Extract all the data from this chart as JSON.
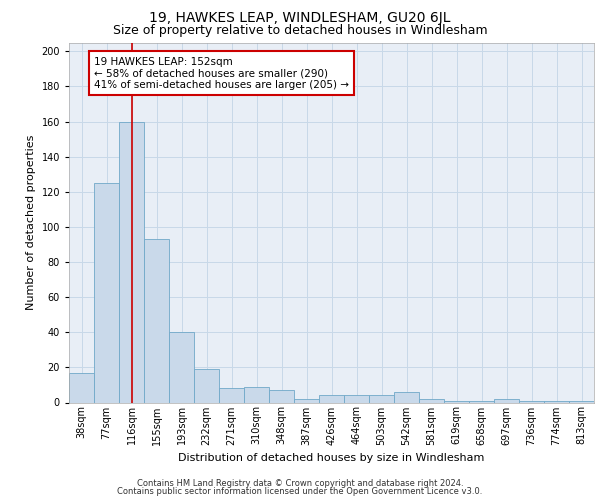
{
  "title1": "19, HAWKES LEAP, WINDLESHAM, GU20 6JL",
  "title2": "Size of property relative to detached houses in Windlesham",
  "xlabel": "Distribution of detached houses by size in Windlesham",
  "ylabel": "Number of detached properties",
  "categories": [
    "38sqm",
    "77sqm",
    "116sqm",
    "155sqm",
    "193sqm",
    "232sqm",
    "271sqm",
    "310sqm",
    "348sqm",
    "387sqm",
    "426sqm",
    "464sqm",
    "503sqm",
    "542sqm",
    "581sqm",
    "619sqm",
    "658sqm",
    "697sqm",
    "736sqm",
    "774sqm",
    "813sqm"
  ],
  "values": [
    17,
    125,
    160,
    93,
    40,
    19,
    8,
    9,
    7,
    2,
    4,
    4,
    4,
    6,
    2,
    1,
    1,
    2,
    1,
    1,
    1
  ],
  "bar_color": "#c9d9ea",
  "bar_edgecolor": "#6fa8c8",
  "vline_x": 2,
  "vline_color": "#cc0000",
  "annotation_line1": "19 HAWKES LEAP: 152sqm",
  "annotation_line2": "← 58% of detached houses are smaller (290)",
  "annotation_line3": "41% of semi-detached houses are larger (205) →",
  "annotation_box_color": "#ffffff",
  "annotation_box_edgecolor": "#cc0000",
  "footer1": "Contains HM Land Registry data © Crown copyright and database right 2024.",
  "footer2": "Contains public sector information licensed under the Open Government Licence v3.0.",
  "ylim": [
    0,
    205
  ],
  "yticks": [
    0,
    20,
    40,
    60,
    80,
    100,
    120,
    140,
    160,
    180,
    200
  ],
  "grid_color": "#c8d8e8",
  "bg_color": "#e8eef6",
  "title1_fontsize": 10,
  "title2_fontsize": 9,
  "xlabel_fontsize": 8,
  "ylabel_fontsize": 8,
  "tick_fontsize": 7
}
